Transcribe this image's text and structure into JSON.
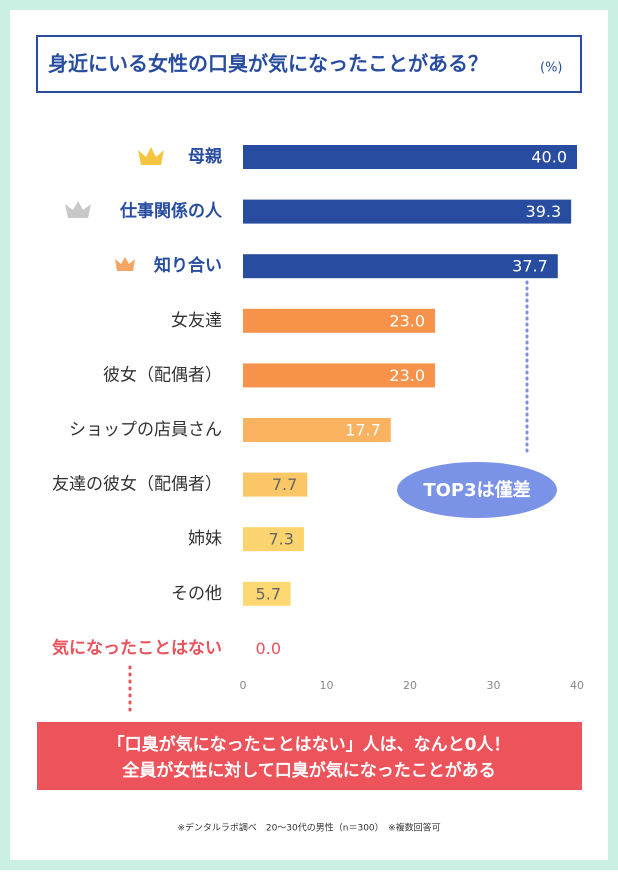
{
  "chart_data": {
    "type": "hbar",
    "title": "身近にいる女性の口臭が気になったことがある？",
    "unit": "(%)",
    "categories": [
      "母親",
      "仕事関係の人",
      "知り合い",
      "女友達",
      "彼女（配偶者）",
      "ショップの店員さん",
      "友達の彼女（配偶者）",
      "姉妹",
      "その他",
      "気になったことはない"
    ],
    "values": [
      40.0,
      39.3,
      37.7,
      23.0,
      23.0,
      17.7,
      7.7,
      7.3,
      5.7,
      0.0
    ],
    "value_labels": [
      "40.0",
      "39.3",
      "37.7",
      "23.0",
      "23.0",
      "17.7",
      "7.7",
      "7.3",
      "5.7",
      "0.0"
    ],
    "colors": [
      "#284da0",
      "#284da0",
      "#284da0",
      "#f7924a",
      "#f7924a",
      "#f9b25f",
      "#fbc766",
      "#fbd46f",
      "#fbd871",
      "#f9d871"
    ],
    "label_colors": [
      "#284da0",
      "#284da0",
      "#284da0",
      "#333333",
      "#333333",
      "#333333",
      "#333333",
      "#333333",
      "#333333",
      "#e8525a"
    ],
    "value_label_colors": [
      "#ffffff",
      "#ffffff",
      "#ffffff",
      "#ffffff",
      "#ffffff",
      "#ffffff",
      "#666666",
      "#666666",
      "#666666",
      "#e8525a"
    ],
    "xlim": [
      0,
      40
    ],
    "xticks": [
      0,
      10,
      20,
      30,
      40
    ],
    "annotation": "TOP3は僅差",
    "callout": [
      "「口臭が気になったことはない」人は、なんと0人！",
      "全員が女性に対して口臭が気になったことがある"
    ],
    "footnote": "※デンタルラボ調べ　20～30代の男性（n＝300）　※複数回答可"
  }
}
